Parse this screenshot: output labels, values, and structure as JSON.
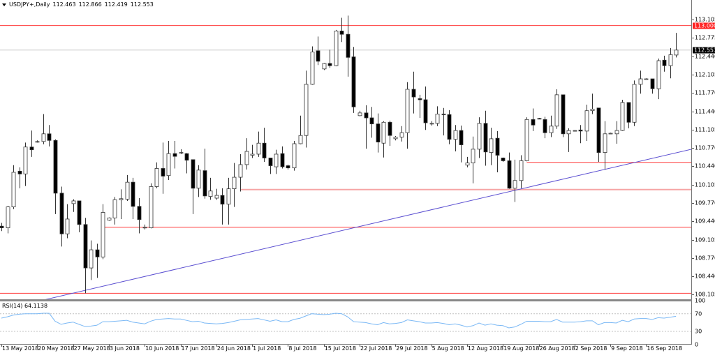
{
  "header": {
    "symbol": "USDJPY+,Daily",
    "open": "112.463",
    "high": "112.866",
    "low": "112.419",
    "close": "112.553"
  },
  "colors": {
    "bull_fill": "#ffffff",
    "bear_fill": "#000000",
    "outline": "#333333",
    "level_red": "#ff3b3b",
    "level_pink": "#f6a5a5",
    "trendline": "#5b4fd1",
    "rsi_line": "#7ab8f5",
    "price_line": "#c8c8c8"
  },
  "chart_data": {
    "type": "candlestick",
    "title": "USDJPY+,Daily",
    "ylim": [
      108.0,
      113.2
    ],
    "price_ticks": [
      "113.105",
      "112.775",
      "112.440",
      "112.105",
      "111.770",
      "111.440",
      "111.105",
      "110.770",
      "110.440",
      "110.105",
      "109.770",
      "109.440",
      "109.105",
      "108.770",
      "108.440",
      "108.105"
    ],
    "current_price": {
      "value": 112.553,
      "label": "112.553"
    },
    "level_label": {
      "value": 113.0,
      "label": "113.000"
    },
    "horizontal_levels": [
      {
        "price": 113.0,
        "from_bar": 0,
        "color": "level_red"
      },
      {
        "price": 110.51,
        "from_bar": 88,
        "color": "level_red"
      },
      {
        "price": 110.015,
        "from_bar": 40,
        "color": "level_pink"
      },
      {
        "price": 109.33,
        "from_bar": 17,
        "color": "level_red"
      },
      {
        "price": 108.13,
        "from_bar": 0,
        "color": "level_red"
      }
    ],
    "trendline": {
      "from": {
        "bar": 6.8,
        "price": 108.0
      },
      "to": {
        "bar": 115.6,
        "price": 110.75
      }
    },
    "ohlc": [
      [
        109.35,
        109.41,
        109.26,
        109.32
      ],
      [
        109.32,
        109.72,
        109.22,
        109.7
      ],
      [
        109.7,
        110.46,
        109.66,
        110.33
      ],
      [
        110.35,
        110.42,
        110.04,
        110.3
      ],
      [
        110.3,
        110.87,
        110.08,
        110.79
      ],
      [
        110.79,
        111.09,
        110.61,
        110.74
      ],
      [
        110.88,
        110.91,
        110.87,
        110.89
      ],
      [
        110.89,
        111.39,
        110.84,
        111.03
      ],
      [
        111.03,
        111.19,
        110.8,
        110.91
      ],
      [
        110.91,
        110.93,
        109.57,
        109.95
      ],
      [
        109.95,
        110.07,
        108.98,
        109.21
      ],
      [
        109.21,
        109.75,
        109.13,
        109.48
      ],
      [
        109.76,
        109.84,
        109.61,
        109.81
      ],
      [
        109.81,
        109.81,
        109.24,
        109.38
      ],
      [
        109.38,
        109.5,
        108.13,
        108.59
      ],
      [
        108.59,
        109.09,
        108.37,
        108.92
      ],
      [
        108.92,
        109.03,
        108.41,
        108.79
      ],
      [
        108.79,
        109.75,
        108.75,
        109.6
      ],
      [
        109.46,
        109.51,
        109.45,
        109.5
      ],
      [
        109.5,
        109.88,
        109.38,
        109.83
      ],
      [
        109.83,
        110.02,
        109.48,
        109.85
      ],
      [
        109.84,
        110.28,
        109.81,
        110.15
      ],
      [
        110.15,
        110.23,
        109.48,
        109.71
      ],
      [
        109.71,
        109.86,
        109.22,
        109.47
      ],
      [
        109.32,
        109.38,
        109.29,
        109.33
      ],
      [
        109.32,
        110.13,
        109.31,
        110.07
      ],
      [
        110.07,
        110.51,
        110.04,
        110.4
      ],
      [
        110.4,
        110.87,
        109.94,
        110.26
      ],
      [
        110.27,
        110.9,
        110.19,
        110.67
      ],
      [
        110.67,
        110.9,
        110.4,
        110.62
      ],
      [
        110.68,
        110.75,
        110.66,
        110.69
      ],
      [
        110.67,
        110.68,
        110.31,
        110.55
      ],
      [
        110.56,
        110.56,
        109.57,
        110.04
      ],
      [
        110.04,
        110.46,
        109.88,
        110.37
      ],
      [
        110.36,
        110.76,
        109.85,
        109.9
      ],
      [
        109.89,
        110.23,
        109.83,
        109.99
      ],
      [
        109.86,
        110.03,
        109.83,
        109.91
      ],
      [
        109.91,
        110.04,
        109.38,
        109.75
      ],
      [
        109.75,
        110.23,
        109.38,
        110.03
      ],
      [
        110.03,
        110.5,
        109.7,
        110.24
      ],
      [
        110.24,
        110.66,
        109.98,
        110.47
      ],
      [
        110.47,
        110.95,
        110.38,
        110.71
      ],
      [
        110.64,
        110.83,
        110.59,
        110.66
      ],
      [
        110.66,
        111.07,
        110.61,
        110.86
      ],
      [
        110.86,
        111.14,
        110.52,
        110.59
      ],
      [
        110.59,
        110.59,
        110.3,
        110.45
      ],
      [
        110.43,
        110.74,
        110.3,
        110.66
      ],
      [
        110.67,
        110.8,
        110.4,
        110.43
      ],
      [
        110.45,
        110.47,
        110.38,
        110.41
      ],
      [
        110.41,
        110.9,
        110.36,
        110.85
      ],
      [
        110.85,
        111.36,
        110.84,
        111.0
      ],
      [
        111.0,
        112.18,
        110.78,
        111.93
      ],
      [
        111.93,
        112.62,
        111.92,
        112.52
      ],
      [
        112.54,
        112.8,
        112.28,
        112.35
      ],
      [
        112.21,
        112.32,
        112.19,
        112.31
      ],
      [
        112.31,
        112.56,
        112.23,
        112.27
      ],
      [
        112.27,
        112.92,
        112.26,
        112.9
      ],
      [
        112.9,
        113.14,
        112.7,
        112.84
      ],
      [
        112.84,
        113.18,
        112.07,
        112.42
      ],
      [
        112.43,
        112.61,
        111.41,
        111.52
      ],
      [
        111.36,
        111.45,
        111.35,
        111.41
      ],
      [
        111.41,
        111.55,
        110.76,
        111.32
      ],
      [
        111.32,
        111.52,
        110.96,
        111.21
      ],
      [
        111.21,
        111.4,
        110.69,
        110.88
      ],
      [
        110.86,
        111.26,
        110.6,
        111.24
      ],
      [
        111.24,
        111.27,
        110.81,
        111.0
      ],
      [
        110.94,
        110.99,
        110.91,
        110.97
      ],
      [
        110.97,
        111.17,
        110.89,
        111.05
      ],
      [
        111.05,
        111.97,
        110.76,
        111.84
      ],
      [
        111.84,
        112.16,
        111.4,
        111.7
      ],
      [
        111.67,
        111.74,
        111.32,
        111.65
      ],
      [
        111.65,
        111.89,
        111.1,
        111.23
      ],
      [
        111.22,
        111.26,
        111.18,
        111.22
      ],
      [
        111.22,
        111.53,
        111.17,
        111.39
      ],
      [
        111.39,
        111.5,
        111.0,
        111.38
      ],
      [
        111.38,
        111.46,
        110.84,
        110.93
      ],
      [
        110.93,
        111.19,
        110.71,
        111.09
      ],
      [
        111.09,
        111.18,
        110.51,
        110.83
      ],
      [
        110.46,
        110.61,
        110.42,
        110.5
      ],
      [
        110.5,
        110.98,
        110.13,
        110.75
      ],
      [
        110.75,
        111.33,
        110.59,
        111.22
      ],
      [
        111.22,
        111.45,
        110.45,
        110.7
      ],
      [
        110.69,
        111.14,
        110.46,
        110.94
      ],
      [
        110.95,
        111.08,
        110.33,
        110.64
      ],
      [
        110.59,
        110.6,
        110.52,
        110.54
      ],
      [
        110.54,
        110.69,
        110.03,
        110.04
      ],
      [
        110.04,
        110.56,
        109.79,
        110.18
      ],
      [
        110.18,
        110.64,
        110.04,
        110.54
      ],
      [
        110.54,
        111.33,
        110.53,
        111.29
      ],
      [
        111.29,
        111.49,
        111.08,
        111.19
      ],
      [
        111.31,
        111.32,
        111.3,
        111.3
      ],
      [
        111.29,
        111.34,
        110.95,
        111.05
      ],
      [
        111.05,
        111.36,
        110.97,
        111.17
      ],
      [
        111.17,
        111.84,
        111.12,
        111.74
      ],
      [
        111.74,
        111.74,
        110.97,
        111.03
      ],
      [
        111.03,
        111.13,
        110.7,
        111.09
      ],
      [
        111.09,
        111.1,
        111.08,
        111.09
      ],
      [
        111.1,
        111.19,
        110.86,
        111.08
      ],
      [
        111.08,
        111.56,
        110.9,
        111.45
      ],
      [
        111.45,
        111.76,
        111.39,
        111.48
      ],
      [
        111.5,
        111.5,
        110.52,
        110.69
      ],
      [
        110.69,
        111.26,
        110.38,
        111.03
      ],
      [
        111.04,
        111.05,
        111.03,
        111.04
      ],
      [
        111.03,
        111.26,
        110.85,
        111.09
      ],
      [
        111.09,
        111.65,
        111.08,
        111.6
      ],
      [
        111.6,
        111.6,
        111.13,
        111.24
      ],
      [
        111.24,
        112.0,
        111.17,
        111.93
      ],
      [
        111.93,
        112.18,
        111.76,
        112.03
      ],
      [
        112.03,
        112.04,
        112.02,
        112.03
      ],
      [
        112.03,
        112.03,
        111.76,
        111.85
      ],
      [
        111.85,
        112.4,
        111.66,
        112.36
      ],
      [
        112.37,
        112.45,
        112.16,
        112.27
      ],
      [
        112.27,
        112.59,
        112.04,
        112.47
      ],
      [
        112.463,
        112.866,
        112.419,
        112.553
      ]
    ],
    "date_labels": [
      "13 May 2018",
      "20 May 2018",
      "27 May 2018",
      "3 Jun 2018",
      "10 Jun 2018",
      "17 Jun 2018",
      "24 Jun 2018",
      "1 Jul 2018",
      "8 Jul 2018",
      "15 Jul 2018",
      "22 Jul 2018",
      "29 Jul 2018",
      "5 Aug 2018",
      "12 Aug 2018",
      "19 Aug 2018",
      "26 Aug 2018",
      "2 Sep 2018",
      "9 Sep 2018",
      "16 Sep 2018"
    ],
    "date_label_every_bars": 6,
    "rsi": {
      "label": "RSI(14) 64.1138",
      "ylim": [
        0,
        100
      ],
      "levels": [
        70,
        30
      ],
      "ticks": [
        "100",
        "70",
        "30",
        "0"
      ],
      "values": [
        60,
        63,
        67,
        69,
        70,
        70,
        70,
        71,
        71,
        53,
        46,
        49,
        51,
        46,
        41,
        42,
        44,
        52,
        52,
        53,
        54,
        55,
        51,
        49,
        47,
        53,
        57,
        58,
        59,
        58,
        58,
        55,
        52,
        53,
        49,
        48,
        47,
        48,
        50,
        53,
        56,
        57,
        58,
        59,
        56,
        53,
        56,
        52,
        52,
        57,
        59.6,
        65,
        70,
        69,
        68,
        69,
        71,
        70,
        63,
        52,
        51,
        50,
        47,
        45,
        50,
        47,
        48,
        50,
        56,
        54,
        52,
        49,
        49,
        50,
        48,
        45,
        47,
        44,
        40,
        43,
        49,
        44,
        47,
        44,
        43,
        38,
        40,
        46,
        53,
        53,
        53,
        52,
        52,
        57,
        51,
        51,
        51,
        52,
        54,
        54,
        45,
        50,
        50,
        49,
        55,
        52,
        58,
        59,
        59,
        57,
        61,
        60,
        62,
        64.11
      ]
    }
  }
}
